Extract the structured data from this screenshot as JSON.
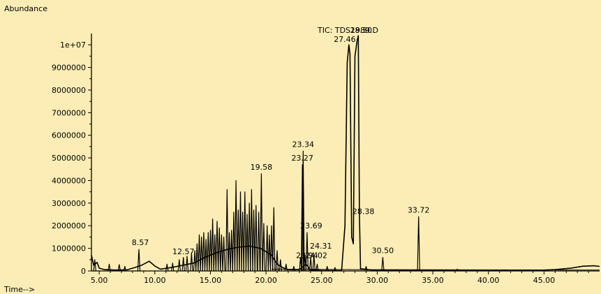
{
  "chart_data": {
    "type": "line",
    "title": "TIC: TDS1989.D",
    "ylabel": "Abundance",
    "xlabel": "Time-->",
    "xlim": [
      4.3,
      50.0
    ],
    "ylim": [
      0,
      10500000
    ],
    "x_ticks": [
      5,
      10,
      15,
      20,
      25,
      30,
      35,
      40,
      45
    ],
    "x_tick_labels": [
      "5.00",
      "10.00",
      "15.00",
      "20.00",
      "25.00",
      "30.00",
      "35.00",
      "40.00",
      "45.00"
    ],
    "y_ticks": [
      0,
      1000000,
      2000000,
      3000000,
      4000000,
      5000000,
      6000000,
      7000000,
      8000000,
      9000000,
      10000000
    ],
    "y_tick_labels": [
      "0",
      "1000000",
      "2000000",
      "3000000",
      "4000000",
      "5000000",
      "6000000",
      "7000000",
      "8000000",
      "9000000",
      "1e+07"
    ],
    "grid": false,
    "line_color": "#000000",
    "background": "#FBEDB5",
    "baseline": [
      [
        4.3,
        700000
      ],
      [
        4.5,
        250000
      ],
      [
        4.8,
        380000
      ],
      [
        5.0,
        120000
      ],
      [
        5.5,
        60000
      ],
      [
        6.5,
        40000
      ],
      [
        7.5,
        50000
      ],
      [
        8.2,
        150000
      ],
      [
        8.8,
        250000
      ],
      [
        9.5,
        430000
      ],
      [
        10.0,
        220000
      ],
      [
        10.5,
        80000
      ],
      [
        11.5,
        150000
      ],
      [
        12.5,
        250000
      ],
      [
        13.5,
        350000
      ],
      [
        14.5,
        600000
      ],
      [
        15.5,
        800000
      ],
      [
        16.5,
        950000
      ],
      [
        17.5,
        1050000
      ],
      [
        18.5,
        1100000
      ],
      [
        19.5,
        1000000
      ],
      [
        20.5,
        700000
      ],
      [
        21.0,
        300000
      ],
      [
        21.5,
        150000
      ],
      [
        22.0,
        60000
      ],
      [
        23.0,
        60000
      ],
      [
        23.6,
        300000
      ],
      [
        24.0,
        50000
      ],
      [
        25.0,
        20000
      ],
      [
        26.0,
        15000
      ],
      [
        26.8,
        10000
      ],
      [
        27.1,
        2000000
      ],
      [
        27.3,
        9200000
      ],
      [
        27.45,
        10000000
      ],
      [
        27.55,
        9600000
      ],
      [
        27.7,
        1500000
      ],
      [
        27.85,
        1200000
      ],
      [
        28.0,
        9500000
      ],
      [
        28.2,
        10200000
      ],
      [
        28.3,
        10400000
      ],
      [
        28.4,
        2500000
      ],
      [
        28.5,
        100000
      ],
      [
        29.5,
        40000
      ],
      [
        31.0,
        25000
      ],
      [
        33.0,
        20000
      ],
      [
        36.0,
        15000
      ],
      [
        40.0,
        10000
      ],
      [
        44.0,
        20000
      ],
      [
        46.0,
        60000
      ],
      [
        47.5,
        130000
      ],
      [
        48.5,
        210000
      ],
      [
        49.5,
        230000
      ],
      [
        50.0,
        200000
      ]
    ],
    "spikes": [
      [
        4.6,
        500000
      ],
      [
        5.9,
        300000
      ],
      [
        6.8,
        280000
      ],
      [
        7.3,
        200000
      ],
      [
        8.57,
        950000
      ],
      [
        11.1,
        300000
      ],
      [
        11.6,
        350000
      ],
      [
        12.2,
        500000
      ],
      [
        12.57,
        600000
      ],
      [
        12.9,
        650000
      ],
      [
        13.3,
        800000
      ],
      [
        13.6,
        900000
      ],
      [
        13.8,
        1200000
      ],
      [
        14.0,
        1600000
      ],
      [
        14.2,
        1500000
      ],
      [
        14.4,
        1700000
      ],
      [
        14.6,
        1400000
      ],
      [
        14.8,
        1700000
      ],
      [
        15.0,
        1800000
      ],
      [
        15.2,
        2300000
      ],
      [
        15.4,
        1600000
      ],
      [
        15.6,
        2200000
      ],
      [
        15.8,
        1900000
      ],
      [
        16.0,
        1600000
      ],
      [
        16.2,
        1500000
      ],
      [
        16.5,
        3600000
      ],
      [
        16.7,
        1700000
      ],
      [
        16.9,
        1800000
      ],
      [
        17.1,
        2600000
      ],
      [
        17.3,
        4000000
      ],
      [
        17.5,
        2700000
      ],
      [
        17.7,
        3500000
      ],
      [
        17.9,
        2600000
      ],
      [
        18.1,
        3500000
      ],
      [
        18.3,
        2500000
      ],
      [
        18.5,
        3000000
      ],
      [
        18.7,
        3600000
      ],
      [
        18.9,
        2700000
      ],
      [
        19.1,
        2900000
      ],
      [
        19.35,
        2600000
      ],
      [
        19.58,
        4300000
      ],
      [
        19.8,
        2100000
      ],
      [
        20.1,
        2000000
      ],
      [
        20.3,
        1600000
      ],
      [
        20.5,
        2000000
      ],
      [
        20.7,
        2800000
      ],
      [
        21.0,
        900000
      ],
      [
        21.3,
        500000
      ],
      [
        21.8,
        300000
      ],
      [
        22.5,
        200000
      ],
      [
        23.1,
        600000
      ],
      [
        23.27,
        4700000
      ],
      [
        23.34,
        5300000
      ],
      [
        23.5,
        700000
      ],
      [
        23.69,
        1700000
      ],
      [
        24.02,
        600000
      ],
      [
        24.31,
        700000
      ],
      [
        24.6,
        300000
      ],
      [
        25.5,
        200000
      ],
      [
        26.2,
        150000
      ],
      [
        29.0,
        200000
      ],
      [
        30.5,
        600000
      ],
      [
        33.72,
        2400000
      ],
      [
        37.2,
        80000
      ]
    ],
    "annotations": [
      {
        "text": "8.57",
        "x": 8.57,
        "y": 950000
      },
      {
        "text": "12.57",
        "x": 12.57,
        "y": 560000
      },
      {
        "text": "19.58",
        "x": 19.58,
        "y": 4300000
      },
      {
        "text": "23.34",
        "x": 23.34,
        "y": 5300000
      },
      {
        "text": "23.27",
        "x": 23.27,
        "y": 4700000
      },
      {
        "text": "23.69",
        "x": 23.69,
        "y": 1700000
      },
      {
        "text": "24.31",
        "x": 24.31,
        "y": 800000
      },
      {
        "text": "23.94",
        "x": 23.94,
        "y": 450000
      },
      {
        "text": "24.02",
        "x": 24.02,
        "y": 450000
      },
      {
        "text": "27.46",
        "x": 27.46,
        "y": 10000000
      },
      {
        "text": "28.30",
        "x": 28.3,
        "y": 10400000
      },
      {
        "text": "28.38",
        "x": 28.38,
        "y": 2400000
      },
      {
        "text": "30.50",
        "x": 30.5,
        "y": 600000
      },
      {
        "text": "33.72",
        "x": 33.72,
        "y": 2400000
      }
    ]
  }
}
